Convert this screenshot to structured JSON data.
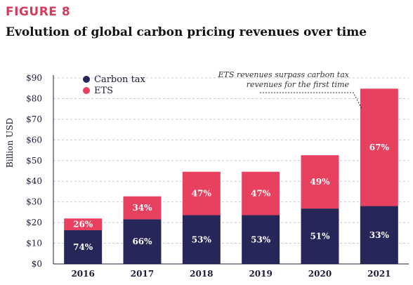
{
  "figure_label": "FIGURE 8",
  "title": "Evolution of global carbon pricing revenues over time",
  "chart_data": {
    "type": "bar",
    "stacked": true,
    "title": "Evolution of global carbon pricing revenues over time",
    "xlabel": "",
    "ylabel": "Billion USD",
    "ylim": [
      0,
      90
    ],
    "yticks": [
      0,
      10,
      20,
      30,
      40,
      50,
      60,
      70,
      80,
      90
    ],
    "ytick_labels": [
      "$0",
      "$10",
      "$20",
      "$30",
      "$40",
      "$50",
      "$60",
      "$70",
      "$80",
      "$90"
    ],
    "categories": [
      "2016",
      "2017",
      "2018",
      "2019",
      "2020",
      "2021"
    ],
    "series": [
      {
        "name": "Carbon tax",
        "color": "#262659",
        "values": [
          16.3,
          21.6,
          23.6,
          23.6,
          26.8,
          28.0
        ],
        "labels": [
          "74%",
          "66%",
          "53%",
          "53%",
          "51%",
          "33%"
        ]
      },
      {
        "name": "ETS",
        "color": "#e8405f",
        "values": [
          5.7,
          11.1,
          21.0,
          21.0,
          25.8,
          56.8
        ],
        "labels": [
          "26%",
          "34%",
          "47%",
          "47%",
          "49%",
          "67%"
        ]
      }
    ],
    "grid": "horizontal-dashed",
    "legend_position": "top-left",
    "annotation": {
      "lines": [
        "ETS revenues surpass carbon tax",
        "revenues for the first time"
      ],
      "category": "2021"
    }
  }
}
